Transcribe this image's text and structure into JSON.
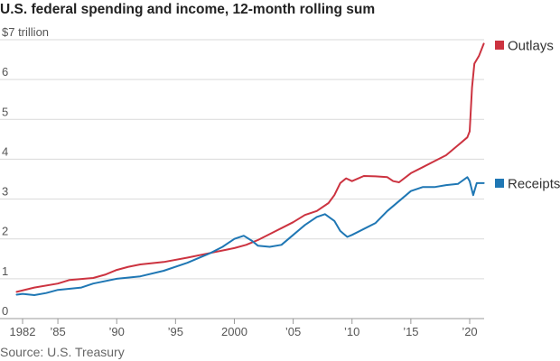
{
  "title": "U.S. federal spending and income, 12-month rolling sum",
  "source": "Source: U.S. Treasury",
  "chart_data": {
    "type": "line",
    "title": "U.S. federal spending and income, 12-month rolling sum",
    "ylabel": "",
    "ylim": [
      0,
      7
    ],
    "xlim": [
      1981,
      2021.4
    ],
    "y_ticks": [
      {
        "value": 0,
        "label": "0"
      },
      {
        "value": 1,
        "label": "1"
      },
      {
        "value": 2,
        "label": "2"
      },
      {
        "value": 3,
        "label": "3"
      },
      {
        "value": 4,
        "label": "4"
      },
      {
        "value": 5,
        "label": "5"
      },
      {
        "value": 6,
        "label": "6"
      },
      {
        "value": 7,
        "label": "$7 trillion"
      }
    ],
    "x_ticks": [
      {
        "value": 1982,
        "label": "1982"
      },
      {
        "value": 1985,
        "label": "’85"
      },
      {
        "value": 1990,
        "label": "’90"
      },
      {
        "value": 1995,
        "label": "’95"
      },
      {
        "value": 2000,
        "label": "2000"
      },
      {
        "value": 2005,
        "label": "’05"
      },
      {
        "value": 2010,
        "label": "’10"
      },
      {
        "value": 2015,
        "label": "’15"
      },
      {
        "value": 2020,
        "label": "’20"
      }
    ],
    "grid": true,
    "legend": "right, at series ends",
    "series": [
      {
        "name": "Outlays",
        "color": "#cc3340",
        "points": [
          [
            1981.5,
            0.67
          ],
          [
            1983,
            0.78
          ],
          [
            1985,
            0.88
          ],
          [
            1986,
            0.97
          ],
          [
            1988,
            1.02
          ],
          [
            1989,
            1.1
          ],
          [
            1990,
            1.22
          ],
          [
            1991,
            1.3
          ],
          [
            1992,
            1.36
          ],
          [
            1994,
            1.42
          ],
          [
            1996,
            1.53
          ],
          [
            1998,
            1.65
          ],
          [
            2000,
            1.77
          ],
          [
            2001,
            1.85
          ],
          [
            2002,
            1.97
          ],
          [
            2003,
            2.12
          ],
          [
            2004,
            2.27
          ],
          [
            2005,
            2.42
          ],
          [
            2006,
            2.6
          ],
          [
            2007,
            2.7
          ],
          [
            2008,
            2.9
          ],
          [
            2008.5,
            3.1
          ],
          [
            2009,
            3.4
          ],
          [
            2009.5,
            3.52
          ],
          [
            2010,
            3.45
          ],
          [
            2011,
            3.58
          ],
          [
            2012,
            3.57
          ],
          [
            2013,
            3.55
          ],
          [
            2013.5,
            3.45
          ],
          [
            2014,
            3.42
          ],
          [
            2015,
            3.65
          ],
          [
            2016,
            3.8
          ],
          [
            2017,
            3.95
          ],
          [
            2018,
            4.1
          ],
          [
            2019,
            4.35
          ],
          [
            2019.8,
            4.55
          ],
          [
            2020.0,
            4.7
          ],
          [
            2020.2,
            5.8
          ],
          [
            2020.4,
            6.4
          ],
          [
            2020.6,
            6.5
          ],
          [
            2020.8,
            6.6
          ],
          [
            2021.0,
            6.75
          ],
          [
            2021.2,
            6.9
          ]
        ]
      },
      {
        "name": "Receipts",
        "color": "#1f77b4",
        "points": [
          [
            1981.5,
            0.6
          ],
          [
            1982,
            0.62
          ],
          [
            1983,
            0.59
          ],
          [
            1984,
            0.64
          ],
          [
            1985,
            0.72
          ],
          [
            1987,
            0.78
          ],
          [
            1988,
            0.88
          ],
          [
            1990,
            1.0
          ],
          [
            1992,
            1.06
          ],
          [
            1994,
            1.2
          ],
          [
            1996,
            1.4
          ],
          [
            1998,
            1.65
          ],
          [
            1999,
            1.8
          ],
          [
            2000,
            2.0
          ],
          [
            2000.8,
            2.08
          ],
          [
            2001.5,
            1.95
          ],
          [
            2002,
            1.83
          ],
          [
            2003,
            1.8
          ],
          [
            2004,
            1.85
          ],
          [
            2005,
            2.1
          ],
          [
            2006,
            2.35
          ],
          [
            2007,
            2.55
          ],
          [
            2007.7,
            2.62
          ],
          [
            2008.5,
            2.45
          ],
          [
            2009,
            2.2
          ],
          [
            2009.6,
            2.05
          ],
          [
            2010,
            2.1
          ],
          [
            2011,
            2.25
          ],
          [
            2012,
            2.4
          ],
          [
            2013,
            2.7
          ],
          [
            2014,
            2.95
          ],
          [
            2015,
            3.2
          ],
          [
            2016,
            3.3
          ],
          [
            2017,
            3.3
          ],
          [
            2018,
            3.35
          ],
          [
            2019,
            3.38
          ],
          [
            2019.8,
            3.55
          ],
          [
            2020.0,
            3.45
          ],
          [
            2020.3,
            3.1
          ],
          [
            2020.6,
            3.4
          ],
          [
            2021.2,
            3.4
          ]
        ]
      }
    ]
  }
}
